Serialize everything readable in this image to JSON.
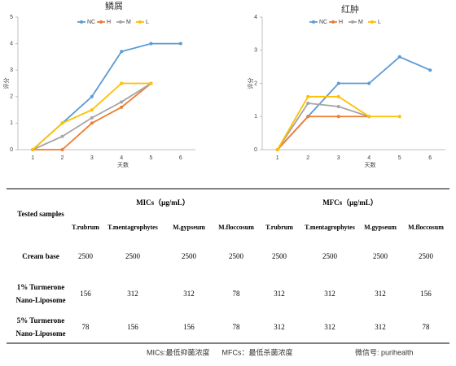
{
  "chart_data": [
    {
      "type": "line",
      "title": "鳞屑",
      "x_label": "天数",
      "y_label": "评分",
      "x": [
        1,
        2,
        3,
        4,
        5,
        6
      ],
      "xlim": [
        0.5,
        6.5
      ],
      "xticks": [
        1,
        2,
        3,
        4,
        5,
        6
      ],
      "ylim": [
        0,
        5
      ],
      "yticks": [
        0,
        1,
        2,
        3,
        4,
        5
      ],
      "series": [
        {
          "name": "NC",
          "color": "#5b9bd5",
          "values": [
            0,
            1,
            2,
            3.7,
            4,
            4
          ]
        },
        {
          "name": "H",
          "color": "#ed7d31",
          "values": [
            0,
            0,
            1,
            1.6,
            2.5,
            null
          ]
        },
        {
          "name": "M",
          "color": "#a5a5a5",
          "values": [
            0,
            0.5,
            1.2,
            1.8,
            2.5,
            null
          ]
        },
        {
          "name": "L",
          "color": "#ffc000",
          "values": [
            0,
            1,
            1.5,
            2.5,
            2.5,
            null
          ]
        }
      ]
    },
    {
      "type": "line",
      "title": "红肿",
      "x_label": "天数",
      "y_label": "评分",
      "x": [
        1,
        2,
        3,
        4,
        5,
        6
      ],
      "xlim": [
        0.5,
        6.5
      ],
      "xticks": [
        1,
        2,
        3,
        4,
        5,
        6
      ],
      "ylim": [
        0,
        4
      ],
      "yticks": [
        0,
        1,
        2,
        3,
        4
      ],
      "series": [
        {
          "name": "NC",
          "color": "#5b9bd5",
          "values": [
            0,
            1,
            2,
            2,
            2.8,
            2.4
          ]
        },
        {
          "name": "H",
          "color": "#ed7d31",
          "values": [
            0,
            1,
            1,
            1,
            null,
            null
          ]
        },
        {
          "name": "M",
          "color": "#a5a5a5",
          "values": [
            0,
            1.4,
            1.3,
            1,
            null,
            null
          ]
        },
        {
          "name": "L",
          "color": "#ffc000",
          "values": [
            0,
            1.6,
            1.6,
            1,
            1,
            null
          ]
        }
      ]
    }
  ],
  "table": {
    "row_header": "Tested samples",
    "groups": [
      "MICs（μg/mL）",
      "MFCs（μg/mL）"
    ],
    "columns": [
      "T.rubrum",
      "T.mentagrophytes",
      "M.gypseum",
      "M.floccosum",
      "T.rubrum",
      "T.mentagrophytes",
      "M.gypseum",
      "M.floccosum"
    ],
    "rows": [
      {
        "label": [
          "Cream base"
        ],
        "cells": [
          2500,
          2500,
          2500,
          2500,
          2500,
          2500,
          2500,
          2500
        ]
      },
      {
        "label": [
          "1% Turmerone",
          "Nano-Liposome"
        ],
        "cells": [
          156,
          312,
          312,
          78,
          312,
          312,
          312,
          156
        ]
      },
      {
        "label": [
          "5% Turmerone",
          "Nano-Liposome"
        ],
        "cells": [
          78,
          156,
          156,
          78,
          312,
          312,
          312,
          78
        ]
      }
    ],
    "footnote": "MICs:最低抑菌浓度      MFCs：最低杀菌浓度"
  },
  "watermark": "微信号: purihealth"
}
